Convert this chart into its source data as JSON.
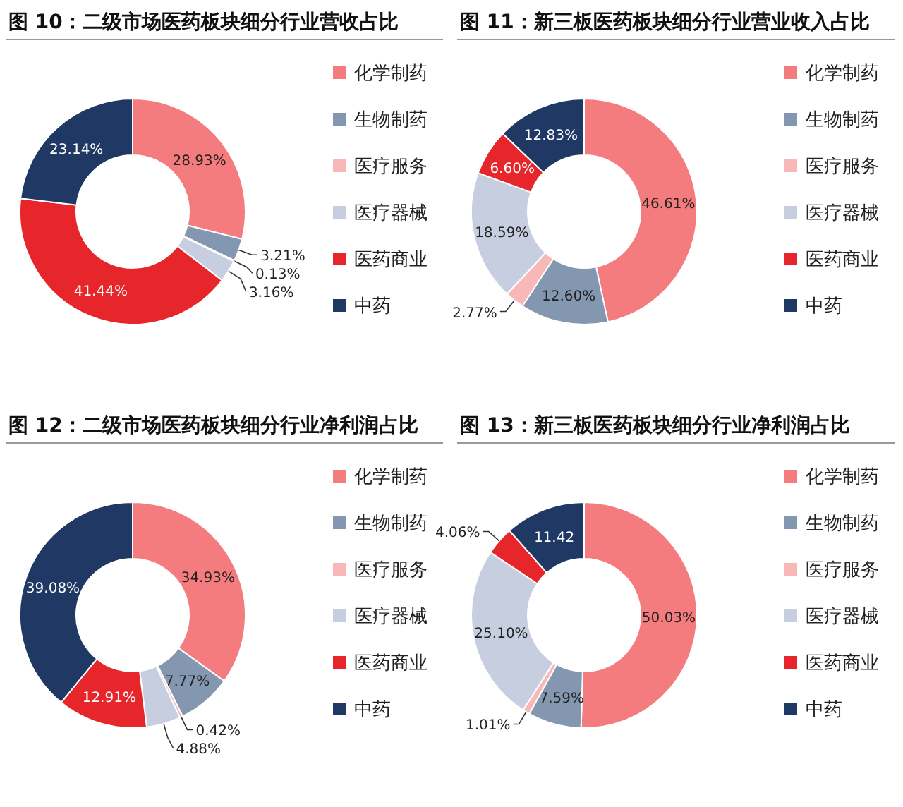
{
  "chart_data": [
    {
      "type": "donut",
      "title": "图 10：二级市场医药板块细分行业营收占比",
      "categories": [
        "化学制药",
        "生物制药",
        "医疗服务",
        "医疗器械",
        "医药商业",
        "中药"
      ],
      "values": [
        28.93,
        3.21,
        0.13,
        3.16,
        41.44,
        23.14
      ],
      "colors": [
        "#f47c7e",
        "#8497b0",
        "#f9b8b8",
        "#c6cee0",
        "#e7262c",
        "#1f3864"
      ],
      "value_labels": [
        "28.93%",
        "3.21%",
        "0.13%",
        "3.16%",
        "41.44%",
        "23.14%"
      ],
      "legend": "right"
    },
    {
      "type": "donut",
      "title": "图 11：新三板医药板块细分行业营业收入占比",
      "categories": [
        "化学制药",
        "生物制药",
        "医疗服务",
        "医疗器械",
        "医药商业",
        "中药"
      ],
      "values": [
        46.61,
        12.6,
        2.77,
        18.59,
        6.6,
        12.83
      ],
      "colors": [
        "#f47c7e",
        "#8497b0",
        "#f9b8b8",
        "#c6cee0",
        "#e7262c",
        "#1f3864"
      ],
      "value_labels": [
        "46.61%",
        "12.60%",
        "2.77%",
        "18.59%",
        "6.60%",
        "12.83%"
      ],
      "legend": "right"
    },
    {
      "type": "donut",
      "title": "图 12：二级市场医药板块细分行业净利润占比",
      "categories": [
        "化学制药",
        "生物制药",
        "医疗服务",
        "医疗器械",
        "医药商业",
        "中药"
      ],
      "values": [
        34.93,
        7.77,
        0.42,
        4.88,
        12.91,
        39.08
      ],
      "colors": [
        "#f47c7e",
        "#8497b0",
        "#f9b8b8",
        "#c6cee0",
        "#e7262c",
        "#1f3864"
      ],
      "value_labels": [
        "34.93%",
        "7.77%",
        "0.42%",
        "4.88%",
        "12.91%",
        "39.08%"
      ],
      "legend": "right"
    },
    {
      "type": "donut",
      "title": "图 13：新三板医药板块细分行业净利润占比",
      "categories": [
        "化学制药",
        "生物制药",
        "医疗服务",
        "医疗器械",
        "医药商业",
        "中药"
      ],
      "values": [
        50.03,
        7.59,
        1.01,
        25.1,
        4.06,
        11.42
      ],
      "colors": [
        "#f47c7e",
        "#8497b0",
        "#f9b8b8",
        "#c6cee0",
        "#e7262c",
        "#1f3864"
      ],
      "value_labels": [
        "50.03%",
        "7.59%",
        "1.01%",
        "25.10%",
        "4.06%",
        "11.42"
      ],
      "legend": "right"
    }
  ]
}
